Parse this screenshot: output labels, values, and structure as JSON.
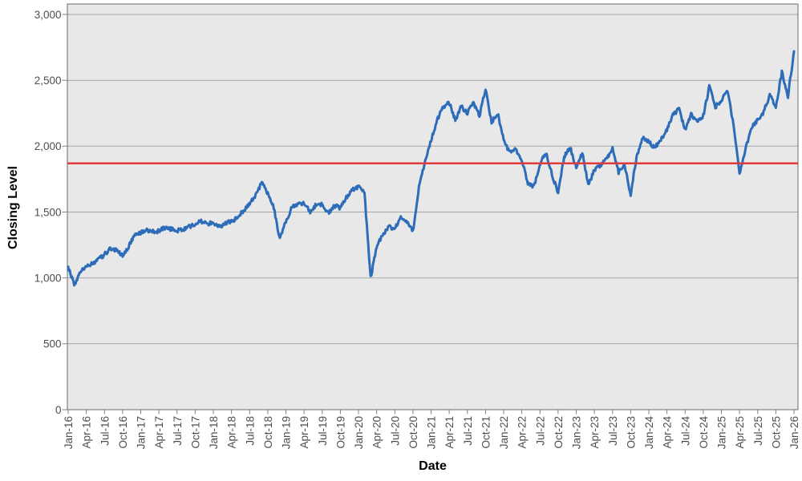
{
  "page": {
    "background": "#ffffff"
  },
  "chart_data": {
    "type": "line",
    "title": "",
    "xlabel": "Date",
    "ylabel": "Closing Level",
    "x_start": "Jan-16",
    "x_end": "Jan-26",
    "x_interval": "monthly",
    "x_tick_labels": [
      "Jan-16",
      "Apr-16",
      "Jul-16",
      "Oct-16",
      "Jan-17",
      "Apr-17",
      "Jul-17",
      "Oct-17",
      "Jan-18",
      "Apr-18",
      "Jul-18",
      "Oct-18",
      "Jan-19",
      "Apr-19",
      "Jul-19",
      "Oct-19",
      "Jan-20",
      "Apr-20",
      "Jul-20",
      "Oct-20",
      "Jan-21",
      "Apr-21",
      "Jul-21",
      "Oct-21",
      "Jan-22",
      "Apr-22",
      "Jul-22",
      "Oct-22",
      "Jan-23",
      "Apr-23",
      "Jul-23",
      "Oct-23",
      "Jan-24",
      "Apr-24",
      "Jul-24",
      "Oct-24",
      "Jan-25",
      "Apr-25",
      "Jul-25",
      "Oct-25",
      "Jan-26"
    ],
    "y_tick_labels": [
      "0",
      "500",
      "1,000",
      "1,500",
      "2,000",
      "2,500",
      "3,000"
    ],
    "ylim": [
      0,
      3000
    ],
    "y_tick_step": 500,
    "grid": "horizontal",
    "legend": false,
    "plot_background": "#e8e8e8",
    "grid_color": "#a6a6a6",
    "axis_color": "#808080",
    "tick_label_color": "#4d4d4d",
    "series": [
      {
        "name": "Closing Level",
        "color": "#2d6cb8",
        "stroke_width": 3,
        "noise_amplitude": 16,
        "monthly_values": [
          1085,
          945,
          1040,
          1090,
          1110,
          1140,
          1180,
          1220,
          1210,
          1170,
          1240,
          1330,
          1340,
          1360,
          1350,
          1355,
          1380,
          1370,
          1360,
          1365,
          1390,
          1410,
          1430,
          1410,
          1420,
          1390,
          1410,
          1430,
          1460,
          1510,
          1560,
          1630,
          1720,
          1640,
          1530,
          1290,
          1430,
          1540,
          1560,
          1570,
          1505,
          1555,
          1560,
          1490,
          1550,
          1530,
          1610,
          1670,
          1690,
          1640,
          1000,
          1230,
          1330,
          1390,
          1370,
          1460,
          1420,
          1350,
          1700,
          1880,
          2040,
          2200,
          2300,
          2330,
          2200,
          2300,
          2250,
          2330,
          2230,
          2440,
          2180,
          2250,
          2050,
          1950,
          1980,
          1890,
          1720,
          1690,
          1870,
          1950,
          1780,
          1650,
          1920,
          1990,
          1830,
          1950,
          1700,
          1820,
          1850,
          1900,
          1990,
          1800,
          1850,
          1630,
          1930,
          2060,
          2030,
          1990,
          2050,
          2120,
          2240,
          2280,
          2130,
          2240,
          2180,
          2230,
          2450,
          2300,
          2340,
          2430,
          2160,
          1790,
          1980,
          2140,
          2200,
          2260,
          2390,
          2300,
          2560,
          2380,
          2720
        ]
      }
    ],
    "reference_line": {
      "value": 1870,
      "color": "#e23b3e",
      "stroke_width": 2.5
    }
  }
}
